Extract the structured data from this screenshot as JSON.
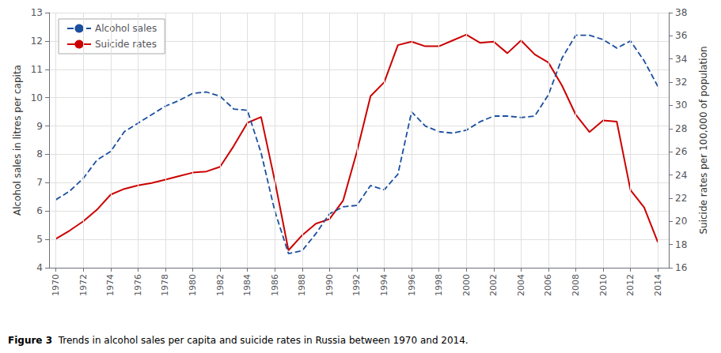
{
  "chart_data": {
    "type": "line",
    "x": [
      1970,
      1971,
      1972,
      1973,
      1974,
      1975,
      1976,
      1977,
      1978,
      1979,
      1980,
      1981,
      1982,
      1983,
      1984,
      1985,
      1986,
      1987,
      1988,
      1989,
      1990,
      1991,
      1992,
      1993,
      1994,
      1995,
      1996,
      1997,
      1998,
      1999,
      2000,
      2001,
      2002,
      2003,
      2004,
      2005,
      2006,
      2007,
      2008,
      2009,
      2010,
      2011,
      2012,
      2013,
      2014
    ],
    "series": [
      {
        "name": "Alcohol sales",
        "color": "#1a4fa0",
        "line_style": "dashed",
        "values": [
          6.4,
          6.7,
          7.15,
          7.8,
          8.1,
          8.8,
          9.1,
          9.4,
          9.7,
          9.9,
          10.15,
          10.2,
          10.05,
          9.6,
          9.55,
          8.05,
          6.0,
          4.5,
          4.6,
          5.2,
          5.9,
          6.15,
          6.2,
          6.9,
          6.75,
          7.3,
          9.5,
          9.0,
          8.8,
          8.75,
          8.85,
          9.15,
          9.35,
          9.35,
          9.3,
          9.35,
          10.1,
          11.4,
          12.2,
          12.2,
          12.05,
          11.75,
          12.0,
          11.3,
          10.4
        ]
      },
      {
        "name": "Suicide rates",
        "color": "#cc0000",
        "line_style": "solid",
        "axis": "y2",
        "values": [
          18.5,
          19.2,
          20.0,
          21.0,
          22.3,
          22.8,
          23.1,
          23.3,
          23.6,
          23.9,
          24.2,
          24.3,
          24.7,
          26.5,
          28.5,
          29.0,
          23.5,
          17.5,
          18.8,
          19.8,
          20.2,
          21.8,
          26.0,
          30.8,
          32.0,
          35.2,
          35.5,
          35.1,
          35.1,
          35.6,
          36.1,
          35.4,
          35.5,
          34.5,
          35.6,
          34.4,
          33.7,
          31.7,
          29.2,
          27.7,
          28.7,
          28.6,
          22.7,
          21.2,
          18.2
        ]
      }
    ],
    "xlim": [
      1969.5,
      2014.8
    ],
    "xticks": [
      1970,
      1972,
      1974,
      1976,
      1978,
      1980,
      1982,
      1984,
      1986,
      1988,
      1990,
      1992,
      1994,
      1996,
      1998,
      2000,
      2002,
      2004,
      2006,
      2008,
      2010,
      2012,
      2014
    ],
    "ylim": [
      4,
      13
    ],
    "yticks": [
      4,
      5,
      6,
      7,
      8,
      9,
      10,
      11,
      12,
      13
    ],
    "y2lim": [
      16,
      38
    ],
    "y2ticks": [
      16,
      18,
      20,
      22,
      24,
      26,
      28,
      30,
      32,
      34,
      36,
      38
    ],
    "ylabel": "Alcohol sales in litres per capita",
    "y2label": "Suicide rates per 100,000 of population",
    "annotations": [
      "Figure 3",
      "Trends in alcohol sales per capita and suicide rates in Russia between 1970 and 2014."
    ],
    "grid": true,
    "legend": "upper left"
  }
}
